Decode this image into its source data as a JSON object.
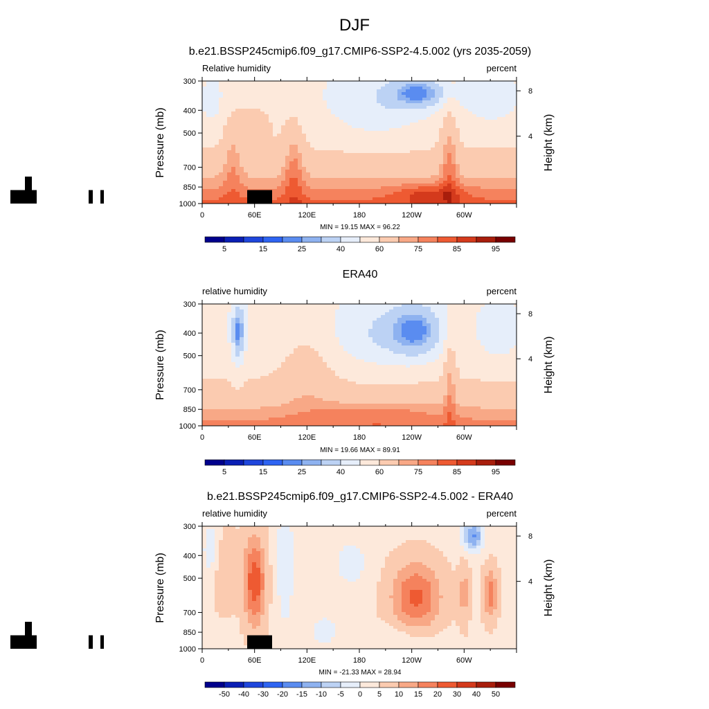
{
  "figure": {
    "main_title": "DJF"
  },
  "panels": [
    {
      "title": "b.e21.BSSP245cmip6.f09_g17.CMIP6-SSP2-4.5.002 (yrs 2035-2059)",
      "left_label": "Relative humidity",
      "right_label": "percent",
      "stats": "MIN =  19.15  MAX =  96.22",
      "kind": "abs",
      "has_mask": true
    },
    {
      "title": "ERA40",
      "left_label": "relative humidity",
      "right_label": "percent",
      "stats": "MIN =  19.66  MAX =  89.91",
      "kind": "abs",
      "has_mask": false
    },
    {
      "title": "b.e21.BSSP245cmip6.f09_g17.CMIP6-SSP2-4.5.002 - ERA40",
      "left_label": "relative humidity",
      "right_label": "percent",
      "stats": "MIN = -21.33  MAX =  28.94",
      "kind": "diff",
      "has_mask": true
    }
  ],
  "axes": {
    "ylabel": "Pressure (mb)",
    "ylabel_right": "Height (km)",
    "pressure_ticks": [
      "300",
      "400",
      "500",
      "700",
      "850",
      "1000"
    ],
    "height_ticks": [
      "8",
      "4"
    ],
    "lon_ticks": [
      "0",
      "60E",
      "120E",
      "180",
      "120W",
      "60W"
    ]
  },
  "colorbars": {
    "abs": {
      "labels": [
        "5",
        "15",
        "25",
        "40",
        "60",
        "75",
        "85",
        "95"
      ],
      "colors": [
        "#00008c",
        "#0a1fb4",
        "#1f46dc",
        "#2e64f2",
        "#5a8cf0",
        "#8eb2f0",
        "#bcd2f4",
        "#e6eefa",
        "#fde9db",
        "#fbcbb0",
        "#f8a886",
        "#f5825d",
        "#ee5a32",
        "#d43a1c",
        "#a81e0c",
        "#780000"
      ]
    },
    "diff": {
      "labels": [
        "-50",
        "-40",
        "-30",
        "-20",
        "-15",
        "-10",
        "-5",
        "0",
        "5",
        "10",
        "15",
        "20",
        "30",
        "40",
        "50"
      ],
      "colors": [
        "#00008c",
        "#0a1fb4",
        "#1f46dc",
        "#2e64f2",
        "#5a8cf0",
        "#8eb2f0",
        "#bcd2f4",
        "#e6eefa",
        "#fde9db",
        "#fbcbb0",
        "#f8a886",
        "#f5825d",
        "#ee5a32",
        "#d43a1c",
        "#a81e0c",
        "#780000"
      ]
    }
  },
  "chart_data": [
    {
      "type": "heatmap",
      "title": "b.e21.BSSP245cmip6.f09_g17.CMIP6-SSP2-4.5.002 (yrs 2035-2059)",
      "xlabel": "",
      "ylabel": "Pressure (mb)",
      "x": [
        "0",
        "60E",
        "120E",
        "180",
        "120W",
        "60W"
      ],
      "y": [
        "300",
        "400",
        "500",
        "700",
        "850",
        "1000"
      ],
      "xlim": [
        0,
        360
      ],
      "ylim": [
        1000,
        300
      ],
      "value_range": [
        19.15,
        96.22
      ],
      "units": "percent",
      "features": [
        {
          "lon": 245,
          "p": 350,
          "value": 22
        },
        {
          "lon": 210,
          "p": 600,
          "value": 55
        },
        {
          "lon": 280,
          "p": 930,
          "value": 90
        },
        {
          "lon": 35,
          "p": 700,
          "value": 80
        },
        {
          "lon": 103,
          "p": 700,
          "value": 82
        },
        {
          "lon": 282,
          "p": 700,
          "value": 85
        }
      ]
    },
    {
      "type": "heatmap",
      "title": "ERA40",
      "xlabel": "",
      "ylabel": "Pressure (mb)",
      "x": [
        "0",
        "60E",
        "120E",
        "180",
        "120W",
        "60W"
      ],
      "y": [
        "300",
        "400",
        "500",
        "700",
        "850",
        "1000"
      ],
      "xlim": [
        0,
        360
      ],
      "ylim": [
        1000,
        300
      ],
      "value_range": [
        19.66,
        89.91
      ],
      "units": "percent",
      "features": [
        {
          "lon": 42,
          "p": 420,
          "value": 25
        },
        {
          "lon": 245,
          "p": 420,
          "value": 20
        },
        {
          "lon": 200,
          "p": 900,
          "value": 85
        },
        {
          "lon": 284,
          "p": 700,
          "value": 78
        }
      ]
    },
    {
      "type": "heatmap",
      "title": "b.e21.BSSP245cmip6.f09_g17.CMIP6-SSP2-4.5.002 - ERA40",
      "xlabel": "",
      "ylabel": "Pressure (mb)",
      "x": [
        "0",
        "60E",
        "120E",
        "180",
        "120W",
        "60W"
      ],
      "y": [
        "300",
        "400",
        "500",
        "700",
        "850",
        "1000"
      ],
      "xlim": [
        0,
        360
      ],
      "ylim": [
        1000,
        300
      ],
      "value_range": [
        -21.33,
        28.94
      ],
      "units": "percent",
      "features": [
        {
          "lon": 60,
          "p": 620,
          "value": 24
        },
        {
          "lon": 245,
          "p": 680,
          "value": 22
        },
        {
          "lon": 310,
          "p": 380,
          "value": -18
        },
        {
          "lon": 330,
          "p": 650,
          "value": 15
        }
      ]
    }
  ]
}
